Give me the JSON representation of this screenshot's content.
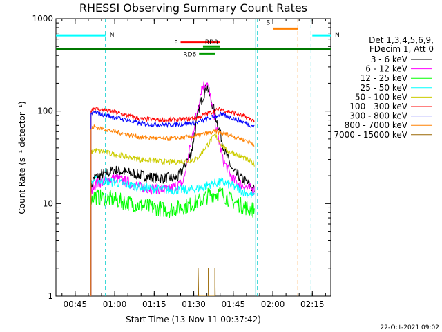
{
  "chart_data": {
    "type": "line",
    "title": "RHESSI Observing Summary Count Rates",
    "xlabel": "Start Time (13-Nov-11 00:37:42)",
    "ylabel": "Count Rate (s⁻¹ detector⁻¹)",
    "yscale": "log",
    "ylim": [
      1,
      1000
    ],
    "xlim": [
      "00:37:42",
      "02:22:00"
    ],
    "x_ticks": [
      "00:45",
      "01:00",
      "01:15",
      "01:30",
      "01:45",
      "02:00",
      "02:15"
    ],
    "y_ticks": [
      "1",
      "10",
      "100",
      "1000"
    ],
    "footer": "22-Oct-2021 09:02",
    "legend": {
      "placement": "right",
      "header": [
        "Det 1,3,4,5,6,9,",
        "FDecim 1, Att 0"
      ],
      "entries": [
        {
          "label": "3 - 6 keV",
          "color": "#000000"
        },
        {
          "label": "6 - 12 keV",
          "color": "#ff00ff"
        },
        {
          "label": "12 - 25 keV",
          "color": "#00ff00"
        },
        {
          "label": "25 - 50 keV",
          "color": "#00ffff"
        },
        {
          "label": "50 - 100 keV",
          "color": "#cccc00"
        },
        {
          "label": "100 - 300 keV",
          "color": "#ff0000"
        },
        {
          "label": "300 - 800 keV",
          "color": "#0000ff"
        },
        {
          "label": "800 - 7000 keV",
          "color": "#ff8000"
        },
        {
          "label": "7000 - 15000 keV",
          "color": "#996600"
        }
      ]
    },
    "flag_bars": [
      {
        "label": "N",
        "color": "#00ffff",
        "start": "00:37:42",
        "end": "00:56:30",
        "level": 660
      },
      {
        "label": "N",
        "color": "#00ffff",
        "start": "02:15:00",
        "end": "02:22:00",
        "level": 660
      },
      {
        "label": "S",
        "color": "#ff8000",
        "start": "02:00:00",
        "end": "02:09:30",
        "level": 780
      },
      {
        "label": "F",
        "color": "#ff0000",
        "start": "01:25:00",
        "end": "01:40:00",
        "level": 560
      },
      {
        "label": "RD0",
        "color": "#009900",
        "start": "01:33:30",
        "end": "01:40:00",
        "level": 500
      },
      {
        "label": "RD6",
        "color": "#009900",
        "start": "01:32:00",
        "end": "01:38:00",
        "level": 420
      },
      {
        "label": "",
        "color": "#007700",
        "start": "00:37:42",
        "end": "02:22:00",
        "level": 470
      }
    ],
    "vlines": [
      {
        "time": "00:56:30",
        "color": "#00cccc",
        "style": "dashed"
      },
      {
        "time": "01:53:30",
        "color": "#00cccc",
        "style": "solid"
      },
      {
        "time": "01:54:10",
        "color": "#00cccc",
        "style": "dashed"
      },
      {
        "time": "02:09:30",
        "color": "#ff8000",
        "style": "dashed"
      },
      {
        "time": "02:14:30",
        "color": "#00cccc",
        "style": "dashed"
      }
    ],
    "series": [
      {
        "name": "3 - 6 keV",
        "color": "#000000",
        "noise": 0.06,
        "x": [
          "00:51:00",
          "00:52:00",
          "01:00:00",
          "01:15:00",
          "01:24:00",
          "01:29:00",
          "01:32:00",
          "01:35:00",
          "01:38:00",
          "01:42:00",
          "01:45:00",
          "01:50:00",
          "01:53:00"
        ],
        "y": [
          14,
          19,
          23,
          19,
          19,
          35,
          110,
          190,
          95,
          35,
          22,
          17,
          14
        ]
      },
      {
        "name": "6 - 12 keV",
        "color": "#ff00ff",
        "noise": 0.06,
        "x": [
          "00:51:00",
          "00:52:00",
          "01:00:00",
          "01:10:00",
          "01:20:00",
          "01:26:00",
          "01:30:00",
          "01:33:00",
          "01:35:00",
          "01:38:00",
          "01:41:00",
          "01:45:00",
          "01:50:00",
          "01:53:00"
        ],
        "y": [
          13,
          16,
          19,
          15,
          14,
          17,
          65,
          180,
          210,
          80,
          30,
          18,
          15,
          14
        ]
      },
      {
        "name": "12 - 25 keV",
        "color": "#00ff00",
        "noise": 0.09,
        "x": [
          "00:51:00",
          "00:52:00",
          "01:00:00",
          "01:10:00",
          "01:20:00",
          "01:28:00",
          "01:33:00",
          "01:36:00",
          "01:40:00",
          "01:45:00",
          "01:50:00",
          "01:53:00"
        ],
        "y": [
          11,
          12,
          11,
          9.5,
          8.5,
          9.5,
          11,
          12.5,
          13,
          10.5,
          9,
          8.5
        ]
      },
      {
        "name": "25 - 50 keV",
        "color": "#00ffff",
        "noise": 0.05,
        "x": [
          "00:51:00",
          "00:52:00",
          "01:00:00",
          "01:10:00",
          "01:20:00",
          "01:28:00",
          "01:33:00",
          "01:37:00",
          "01:41:00",
          "01:46:00",
          "01:50:00",
          "01:53:00"
        ],
        "y": [
          16,
          18,
          17,
          15,
          14,
          14,
          15,
          16.5,
          17,
          15,
          13,
          12
        ]
      },
      {
        "name": "50 - 100 keV",
        "color": "#cccc00",
        "noise": 0.03,
        "x": [
          "00:51:00",
          "00:52:00",
          "01:00:00",
          "01:10:00",
          "01:20:00",
          "01:27:00",
          "01:31:00",
          "01:38:00",
          "01:42:00",
          "01:46:00",
          "01:50:00",
          "01:53:00"
        ],
        "y": [
          35,
          38,
          34,
          30,
          28,
          29,
          30,
          55,
          38,
          34,
          30,
          27
        ]
      },
      {
        "name": "100 - 300 keV",
        "color": "#ff0000",
        "noise": 0.025,
        "x": [
          "00:51:00",
          "00:52:00",
          "01:00:00",
          "01:10:00",
          "01:20:00",
          "01:27:00",
          "01:31:00",
          "01:40:00",
          "01:44:00",
          "01:50:00",
          "01:53:00"
        ],
        "y": [
          100,
          108,
          97,
          82,
          80,
          82,
          85,
          105,
          98,
          86,
          78
        ]
      },
      {
        "name": "300 - 800 keV",
        "color": "#0000ff",
        "noise": 0.025,
        "x": [
          "00:51:00",
          "00:52:00",
          "01:00:00",
          "01:10:00",
          "01:20:00",
          "01:27:00",
          "01:31:00",
          "01:40:00",
          "01:44:00",
          "01:50:00",
          "01:53:00"
        ],
        "y": [
          90,
          97,
          86,
          73,
          71,
          73,
          75,
          92,
          86,
          74,
          68
        ]
      },
      {
        "name": "800 - 7000 keV",
        "color": "#ff8000",
        "noise": 0.025,
        "x": [
          "00:51:00",
          "00:52:00",
          "01:00:00",
          "01:10:00",
          "01:20:00",
          "01:27:00",
          "01:31:00",
          "01:38:00",
          "01:44:00",
          "01:50:00",
          "01:53:00"
        ],
        "y": [
          63,
          68,
          60,
          52,
          50,
          52,
          54,
          60,
          55,
          48,
          44
        ]
      },
      {
        "name": "7000 - 15000 keV",
        "color": "#996600",
        "noise": 0,
        "x": [
          "01:31:40",
          "01:31:40",
          "01:31:50",
          "01:35:30",
          "01:35:30",
          "01:35:40",
          "01:38:00",
          "01:38:00",
          "01:38:10"
        ],
        "y": [
          1,
          2,
          1,
          1,
          2,
          1,
          1,
          2,
          1
        ]
      }
    ]
  }
}
